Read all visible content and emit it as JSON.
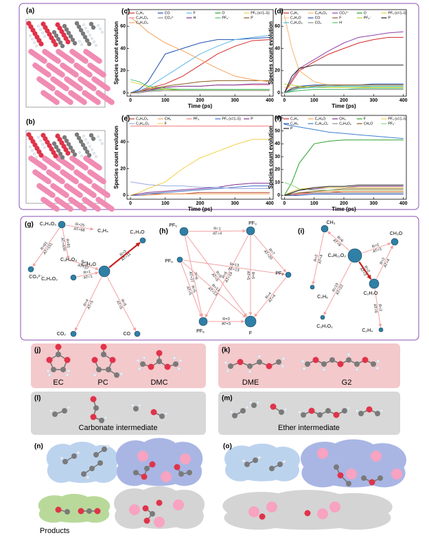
{
  "panels": [
    "(a)",
    "(b)",
    "(c)",
    "(d)",
    "(e)",
    "(f)",
    "(g)",
    "(h)",
    "(i)",
    "(j)",
    "(k)",
    "(l)",
    "(m)",
    "(n)",
    "(o)"
  ],
  "chart_data": [
    {
      "type": "line",
      "x_label": "Time (ps)",
      "y_label": "Species count evolution",
      "x": [
        0,
        25,
        50,
        100,
        150,
        200,
        250,
        300,
        350,
        400
      ],
      "xlim": [
        -10,
        410
      ],
      "ylim": [
        -3,
        75
      ],
      "xticks": [
        0,
        100,
        200,
        300,
        400
      ],
      "yticks": [
        0,
        20,
        40,
        60
      ],
      "legend": "top",
      "series": [
        {
          "name": "C₂H₄",
          "color": "#d62728",
          "values": [
            0,
            2,
            4,
            8,
            15,
            25,
            35,
            42,
            47,
            48
          ]
        },
        {
          "name": "CO",
          "color": "#1f4fb4",
          "values": [
            0,
            3,
            10,
            35,
            40,
            45,
            48,
            48,
            49,
            50
          ]
        },
        {
          "name": "F",
          "color": "#5fb6e8",
          "values": [
            0,
            2,
            5,
            15,
            25,
            35,
            42,
            48,
            50,
            52
          ]
        },
        {
          "name": "O",
          "color": "#2ca02c",
          "values": [
            0,
            1,
            2,
            3,
            3,
            3,
            3,
            3,
            3,
            3
          ]
        },
        {
          "name": "PFₓ (x=1–5)",
          "color": "#e8d14a",
          "values": [
            10,
            8,
            5,
            3,
            2,
            2,
            2,
            2,
            2,
            2
          ]
        },
        {
          "name": "C₃H₄O₂",
          "color": "#f08aa8",
          "values": [
            0,
            1,
            3,
            5,
            6,
            6,
            7,
            7,
            7,
            7
          ]
        },
        {
          "name": "CO₃²⁻",
          "color": "#8c8c8c",
          "values": [
            0,
            0,
            1,
            2,
            2,
            2,
            2,
            2,
            2,
            2
          ]
        },
        {
          "name": "H",
          "color": "#7b2d8e",
          "values": [
            0,
            1,
            2,
            5,
            6,
            6,
            7,
            7,
            8,
            8
          ]
        },
        {
          "name": "PF₆⁻",
          "color": "#55c26a",
          "values": [
            12,
            10,
            6,
            4,
            3,
            3,
            3,
            3,
            3,
            3
          ]
        },
        {
          "name": "P",
          "color": "#8b5a1b",
          "values": [
            0,
            1,
            3,
            6,
            8,
            10,
            11,
            11,
            11,
            11
          ]
        },
        {
          "name": "C₃H₄O₃",
          "color": "#f5a25d",
          "values": [
            68,
            62,
            55,
            45,
            38,
            30,
            22,
            15,
            12,
            10
          ]
        }
      ]
    },
    {
      "type": "line",
      "x_label": "Time (ps)",
      "y_label": "Species count evolution",
      "x": [
        0,
        25,
        50,
        100,
        150,
        200,
        250,
        300,
        350,
        400
      ],
      "xlim": [
        -10,
        410
      ],
      "ylim": [
        -3,
        75
      ],
      "xticks": [
        0,
        100,
        200,
        300,
        400
      ],
      "yticks": [
        0,
        20,
        40,
        60
      ],
      "legend": "top",
      "series": [
        {
          "name": "C₂H₄",
          "color": "#d62728",
          "values": [
            0,
            10,
            20,
            28,
            35,
            40,
            45,
            48,
            50,
            50
          ]
        },
        {
          "name": "C₂H₄O₃",
          "color": "#f5b56d",
          "values": [
            70,
            40,
            20,
            10,
            7,
            6,
            6,
            5,
            5,
            5
          ]
        },
        {
          "name": "CO₃²⁻",
          "color": "#8e3fa8",
          "values": [
            0,
            12,
            22,
            30,
            38,
            45,
            50,
            52,
            54,
            55
          ]
        },
        {
          "name": "O",
          "color": "#2ca02c",
          "values": [
            0,
            2,
            4,
            5,
            5,
            5,
            5,
            5,
            5,
            5
          ]
        },
        {
          "name": "PFₓ (x=1–5)",
          "color": "#e8d14a",
          "values": [
            5,
            5,
            5,
            5,
            5,
            5,
            5,
            5,
            5,
            5
          ]
        },
        {
          "name": "C₂H₄O",
          "color": "#f7c89b",
          "values": [
            0,
            5,
            6,
            7,
            7,
            7,
            7,
            7,
            7,
            7
          ]
        },
        {
          "name": "CO",
          "color": "#1f4fb4",
          "values": [
            0,
            4,
            6,
            7,
            7,
            7,
            7,
            8,
            8,
            8
          ]
        },
        {
          "name": "F",
          "color": "#8b5a1b",
          "values": [
            0,
            3,
            5,
            6,
            7,
            7,
            7,
            7,
            7,
            7
          ]
        },
        {
          "name": "PF₆⁻",
          "color": "#b5d334",
          "values": [
            8,
            7,
            6,
            5,
            5,
            5,
            5,
            5,
            5,
            5
          ]
        },
        {
          "name": "P",
          "color": "#222222",
          "values": [
            0,
            15,
            22,
            25,
            25,
            25,
            25,
            25,
            25,
            25
          ]
        },
        {
          "name": "C₂H₄O₂",
          "color": "#3fc1d6",
          "values": [
            0,
            2,
            4,
            5,
            6,
            6,
            6,
            6,
            6,
            6
          ]
        },
        {
          "name": "CO₂",
          "color": "#8c8c8c",
          "values": [
            0,
            1,
            2,
            3,
            3,
            3,
            3,
            3,
            3,
            3
          ]
        },
        {
          "name": "H",
          "color": "#55c26a",
          "values": [
            0,
            1,
            2,
            3,
            3,
            3,
            4,
            4,
            4,
            4
          ]
        }
      ]
    },
    {
      "type": "line",
      "x_label": "Time (ps)",
      "y_label": "Species count evolution",
      "x": [
        0,
        25,
        50,
        100,
        150,
        200,
        250,
        300,
        350,
        400
      ],
      "xlim": [
        -10,
        410
      ],
      "ylim": [
        -3,
        60
      ],
      "xticks": [
        0,
        100,
        200,
        300,
        400
      ],
      "yticks": [
        0,
        20,
        40
      ],
      "legend": "top",
      "series": [
        {
          "name": "C₃H₆O₃",
          "color": "#b3412c",
          "values": [
            0,
            0,
            1,
            1,
            1,
            2,
            2,
            2,
            2,
            2
          ]
        },
        {
          "name": "CH₃",
          "color": "#f5a25d",
          "values": [
            0,
            0,
            0,
            1,
            1,
            1,
            1,
            1,
            1,
            1
          ]
        },
        {
          "name": "PF₆",
          "color": "#f08080",
          "values": [
            52,
            52,
            52,
            52,
            52,
            52,
            52,
            52,
            52,
            52
          ]
        },
        {
          "name": "PFₓ (x=1–5)",
          "color": "#3a6fc4",
          "values": [
            0,
            0,
            1,
            2,
            3,
            4,
            5,
            6,
            7,
            7
          ]
        },
        {
          "name": "P",
          "color": "#7b2d8e",
          "values": [
            0,
            1,
            2,
            3,
            4,
            5,
            6,
            8,
            9,
            9
          ]
        },
        {
          "name": "C₄H₁₀O₂",
          "color": "#9aa9e0",
          "values": [
            10,
            9,
            8,
            7,
            7,
            6,
            6,
            5,
            5,
            5
          ]
        },
        {
          "name": "F",
          "color": "#f2cf46",
          "values": [
            0,
            2,
            5,
            10,
            20,
            28,
            33,
            38,
            42,
            42
          ]
        }
      ]
    },
    {
      "type": "line",
      "x_label": "Time (ps)",
      "y_label": "Species count evolution",
      "x": [
        0,
        25,
        50,
        100,
        150,
        200,
        250,
        300,
        350,
        400
      ],
      "xlim": [
        -10,
        410
      ],
      "ylim": [
        -3,
        62
      ],
      "xticks": [
        0,
        100,
        200,
        300,
        400
      ],
      "yticks": [
        0,
        10,
        20,
        30,
        40,
        50,
        60
      ],
      "legend": "top",
      "series": [
        {
          "name": "C₂H₄",
          "color": "#d62728",
          "values": [
            0,
            0,
            1,
            2,
            2,
            3,
            3,
            3,
            3,
            3
          ]
        },
        {
          "name": "C₂H₃O",
          "color": "#f5a25d",
          "values": [
            0,
            1,
            2,
            3,
            3,
            3,
            3,
            3,
            3,
            3
          ]
        },
        {
          "name": "CH₃",
          "color": "#7b2d8e",
          "values": [
            0,
            2,
            4,
            5,
            6,
            6,
            7,
            7,
            7,
            7
          ]
        },
        {
          "name": "F",
          "color": "#2ca02c",
          "values": [
            0,
            10,
            25,
            40,
            42,
            43,
            43,
            43,
            43,
            43
          ]
        },
        {
          "name": "PFₓ (x=1–5)",
          "color": "#e8d14a",
          "values": [
            0,
            3,
            5,
            6,
            6,
            6,
            6,
            6,
            6,
            6
          ]
        },
        {
          "name": "C₂H₆",
          "color": "#1f4fb4",
          "values": [
            0,
            0,
            0,
            1,
            1,
            1,
            1,
            1,
            1,
            1
          ]
        },
        {
          "name": "C₄H₁₀O₂",
          "color": "#3a7fd0",
          "values": [
            55,
            54,
            53,
            51,
            49,
            48,
            47,
            46,
            45,
            44
          ]
        },
        {
          "name": "C₂H₅O₂",
          "color": "#8c8c8c",
          "values": [
            0,
            1,
            2,
            2,
            2,
            2,
            2,
            2,
            2,
            2
          ]
        },
        {
          "name": "CH₂O",
          "color": "#8b5a1b",
          "values": [
            0,
            1,
            2,
            3,
            4,
            5,
            5,
            5,
            5,
            5
          ]
        },
        {
          "name": "PF₆⁻",
          "color": "#8fd18b",
          "values": [
            10,
            8,
            5,
            4,
            4,
            4,
            4,
            4,
            4,
            4
          ]
        },
        {
          "name": "P",
          "color": "#222222",
          "values": [
            0,
            2,
            4,
            6,
            7,
            7,
            8,
            8,
            8,
            8
          ]
        }
      ]
    }
  ],
  "networks": [
    {
      "nodes": [
        "C₃H₄O₃",
        "C₂H₄",
        "CO₃²⁻",
        "C₂H₄O",
        "C₃H₄O₃",
        "C₃H₄O",
        "C₂H₄O₂",
        "CO₂",
        "CO"
      ],
      "edges": [
        {
          "r": "R=25",
          "at": "AT=68"
        },
        {
          "r": "R=81",
          "at": "AT=151"
        },
        {
          "r": "R=81",
          "at": "AT=430"
        },
        {
          "r": "R=9",
          "at": "AT=37"
        },
        {
          "r": "R=3",
          "at": "AT=11"
        },
        {
          "r": "R=1",
          "at": "AT=1"
        },
        {
          "r": "R=4",
          "at": "AT=5"
        },
        {
          "r": "R=5",
          "at": "AT=5"
        }
      ]
    },
    {
      "nodes": [
        "PF₅",
        "PF₃",
        "PF₆",
        "PF₂",
        "PF₆",
        "F"
      ],
      "edges": [
        {
          "r": "R=1",
          "at": "AT=4"
        },
        {
          "r": "R=6",
          "at": "AT=27"
        },
        {
          "r": "R=5",
          "at": "AT=5"
        },
        {
          "r": "R=6",
          "at": "AT=19"
        },
        {
          "r": "R=7",
          "at": "AT=20"
        },
        {
          "r": "R=5",
          "at": "AT=5"
        },
        {
          "r": "R=5",
          "at": "AT=5"
        },
        {
          "r": "R=4",
          "at": "AT=4"
        },
        {
          "r": "R=13",
          "at": "AT=13"
        },
        {
          "r": "R=3",
          "at": "AT=3"
        },
        {
          "r": "R=13",
          "at": "AT=13"
        }
      ]
    },
    {
      "nodes": [
        "CH₃",
        "C₄H₁₀O₂",
        "CH₃O",
        "C₂H₆",
        "C₃H₇O₂",
        "C₂H₇O",
        "C₂H₄"
      ],
      "edges": [
        {
          "r": "R=6",
          "at": "AT=9"
        },
        {
          "r": "R=2",
          "at": "AT=4"
        },
        {
          "r": "R=2",
          "at": "AT=3"
        },
        {
          "r": "R=10",
          "at": "AT=22"
        },
        {
          "r": "R=2",
          "at": "AT=3"
        },
        {
          "r": "R=2",
          "at": "AT=4"
        },
        {
          "r": "R=2",
          "at": "AT=6"
        }
      ]
    }
  ],
  "molecules": {
    "carbonates": [
      "EC",
      "PC",
      "DMC"
    ],
    "ethers": [
      "DME",
      "G2"
    ],
    "carbonate_intermediate": "Carbonate intermediate",
    "ether_intermediate": "Ether intermediate",
    "products": "Products"
  }
}
